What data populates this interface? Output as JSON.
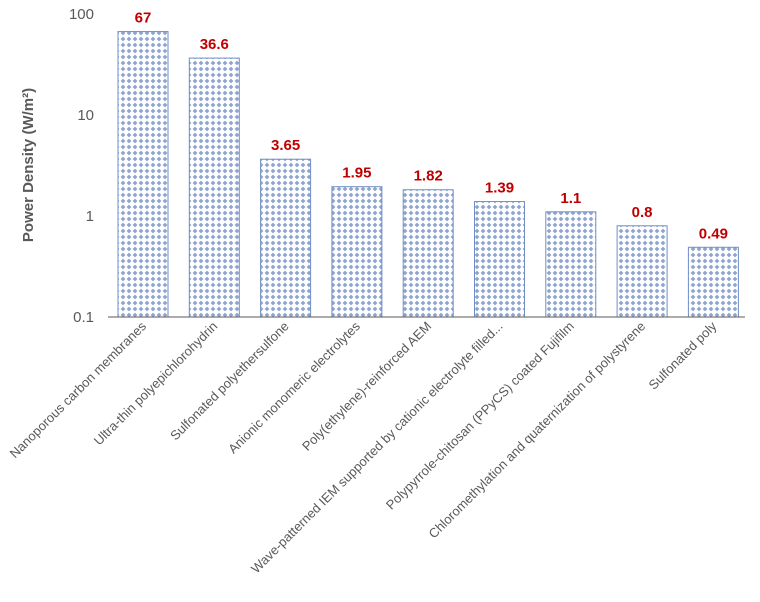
{
  "chart_data": {
    "type": "bar",
    "title": "",
    "xlabel": "",
    "ylabel": "Power Density (W/m²)",
    "yscale": "log",
    "ylim": [
      0.1,
      100
    ],
    "yticks": [
      "0.1",
      "1",
      "10",
      "100"
    ],
    "grid": false,
    "categories": [
      "Nanoporous carbon membranes",
      "Ultra-thin polyepichlorohydrin",
      "Sulfonated polyethersulfone",
      "Anionic monomeric electrolytes",
      "Poly(ethylene)-reinforced AEM",
      "Wave-patterned IEM supported by cationic electrolyte filled...",
      "Polypyrrole-chitosan (PPyCS) coated Fujifilm",
      "Chloromethylation and quaternization of polystyrene",
      "Sulfonated poly"
    ],
    "values": [
      67,
      36.6,
      3.65,
      1.95,
      1.82,
      1.39,
      1.1,
      0.8,
      0.49
    ],
    "data_labels": [
      "67",
      "36.6",
      "3.65",
      "1.95",
      "1.82",
      "1.39",
      "1.1",
      "0.8",
      "0.49"
    ],
    "colors": {
      "bar_fill_dots": "#8fa5d0",
      "bar_border": "#6f8fc4",
      "label": "#c00000",
      "axis": "#595959"
    }
  }
}
